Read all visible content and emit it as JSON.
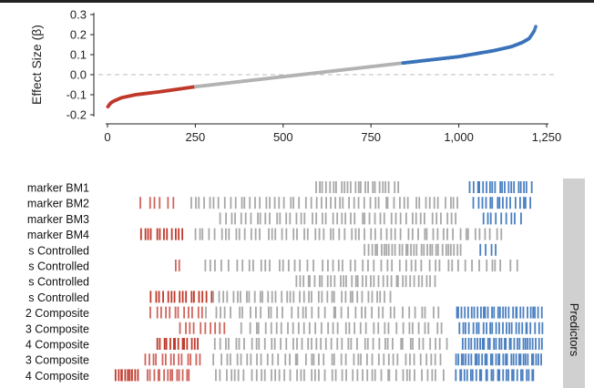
{
  "chart_data": [
    {
      "type": "scatter",
      "ylabel": "Effect Size (β)",
      "xlim": [
        0,
        1250
      ],
      "ylim": [
        -0.2,
        0.3
      ],
      "x_ticks": [
        0,
        250,
        500,
        750,
        1000,
        1250
      ],
      "x_tick_labels": [
        "0",
        "250",
        "500",
        "750",
        "1,000",
        "1,250"
      ],
      "y_ticks": [
        -0.2,
        -0.1,
        0.0,
        0.1,
        0.2,
        0.3
      ],
      "y_tick_labels": [
        "-0.2",
        "-0.1",
        "0.0",
        "0.1",
        "0.2",
        "0.3"
      ],
      "reference_line_y": 0,
      "n_points": 1220,
      "curve_x": [
        1,
        5,
        10,
        20,
        40,
        80,
        150,
        250,
        350,
        500,
        600,
        700,
        800,
        900,
        1000,
        1100,
        1150,
        1180,
        1200,
        1210,
        1215,
        1220
      ],
      "curve_y": [
        -0.16,
        -0.15,
        -0.14,
        -0.13,
        -0.115,
        -0.1,
        -0.085,
        -0.06,
        -0.04,
        -0.01,
        0.01,
        0.03,
        0.05,
        0.07,
        0.09,
        0.12,
        0.14,
        0.16,
        0.18,
        0.205,
        0.22,
        0.245
      ],
      "color_ranges": [
        {
          "from": 0,
          "to": 250,
          "color": "#c0392b"
        },
        {
          "from": 250,
          "to": 840,
          "color": "#b3b3b3"
        },
        {
          "from": 840,
          "to": 1220,
          "color": "#3b73b9"
        }
      ]
    },
    {
      "type": "barcode",
      "strip_label": "Predictors",
      "rows": [
        {
          "label": "marker BM1",
          "segments": [
            {
              "from": 590,
              "to": 830,
              "n": 24,
              "color": "#a8a8a8"
            },
            {
              "from": 1030,
              "to": 1210,
              "n": 20,
              "color": "#4a7fc1"
            }
          ]
        },
        {
          "label": "marker BM2",
          "segments": [
            {
              "from": 90,
              "to": 200,
              "n": 6,
              "color": "#d0655d"
            },
            {
              "from": 230,
              "to": 1010,
              "n": 55,
              "color": "#a8a8a8"
            },
            {
              "from": 1040,
              "to": 1210,
              "n": 16,
              "color": "#4a7fc1"
            }
          ]
        },
        {
          "label": "marker BM3",
          "segments": [
            {
              "from": 320,
              "to": 1000,
              "n": 48,
              "color": "#a8a8a8"
            },
            {
              "from": 1060,
              "to": 1180,
              "n": 9,
              "color": "#4a7fc1"
            }
          ]
        },
        {
          "label": "marker BM4",
          "segments": [
            {
              "from": 90,
              "to": 220,
              "n": 12,
              "color": "#c0392b"
            },
            {
              "from": 240,
              "to": 1130,
              "n": 60,
              "color": "#a8a8a8"
            }
          ]
        },
        {
          "label": "s Controlled",
          "segments": [
            {
              "from": 730,
              "to": 1010,
              "n": 32,
              "color": "#a8a8a8"
            },
            {
              "from": 1060,
              "to": 1110,
              "n": 4,
              "color": "#4a7fc1"
            }
          ]
        },
        {
          "label": "s Controlled",
          "segments": [
            {
              "from": 190,
              "to": 210,
              "n": 2,
              "color": "#d0655d"
            },
            {
              "from": 270,
              "to": 1170,
              "n": 52,
              "color": "#a8a8a8"
            }
          ]
        },
        {
          "label": "s Controlled",
          "segments": [
            {
              "from": 530,
              "to": 940,
              "n": 36,
              "color": "#a8a8a8"
            }
          ]
        },
        {
          "label": "s Controlled",
          "segments": [
            {
              "from": 120,
              "to": 300,
              "n": 16,
              "color": "#c0392b"
            },
            {
              "from": 300,
              "to": 810,
              "n": 40,
              "color": "#a8a8a8"
            }
          ]
        },
        {
          "label": "2 Composite",
          "segments": [
            {
              "from": 120,
              "to": 280,
              "n": 12,
              "color": "#d0655d"
            },
            {
              "from": 280,
              "to": 950,
              "n": 40,
              "color": "#a8a8a8"
            },
            {
              "from": 990,
              "to": 1240,
              "n": 30,
              "color": "#4a7fc1"
            }
          ]
        },
        {
          "label": "3 Composite",
          "segments": [
            {
              "from": 200,
              "to": 340,
              "n": 10,
              "color": "#d0655d"
            },
            {
              "from": 380,
              "to": 960,
              "n": 36,
              "color": "#a8a8a8"
            },
            {
              "from": 1000,
              "to": 1240,
              "n": 26,
              "color": "#4a7fc1"
            }
          ]
        },
        {
          "label": "4 Composite",
          "segments": [
            {
              "from": 140,
              "to": 260,
              "n": 14,
              "color": "#c0392b"
            },
            {
              "from": 300,
              "to": 970,
              "n": 46,
              "color": "#a8a8a8"
            },
            {
              "from": 1010,
              "to": 1240,
              "n": 30,
              "color": "#4a7fc1"
            }
          ]
        },
        {
          "label": "3 Composite",
          "segments": [
            {
              "from": 100,
              "to": 270,
              "n": 14,
              "color": "#d0655d"
            },
            {
              "from": 300,
              "to": 960,
              "n": 44,
              "color": "#a8a8a8"
            },
            {
              "from": 990,
              "to": 1240,
              "n": 34,
              "color": "#4a7fc1"
            }
          ]
        },
        {
          "label": "4 Composite",
          "segments": [
            {
              "from": 20,
              "to": 90,
              "n": 10,
              "color": "#c0392b"
            },
            {
              "from": 110,
              "to": 240,
              "n": 14,
              "color": "#d0655d"
            },
            {
              "from": 300,
              "to": 960,
              "n": 46,
              "color": "#a8a8a8"
            },
            {
              "from": 990,
              "to": 1220,
              "n": 28,
              "color": "#4a7fc1"
            }
          ]
        }
      ]
    }
  ]
}
